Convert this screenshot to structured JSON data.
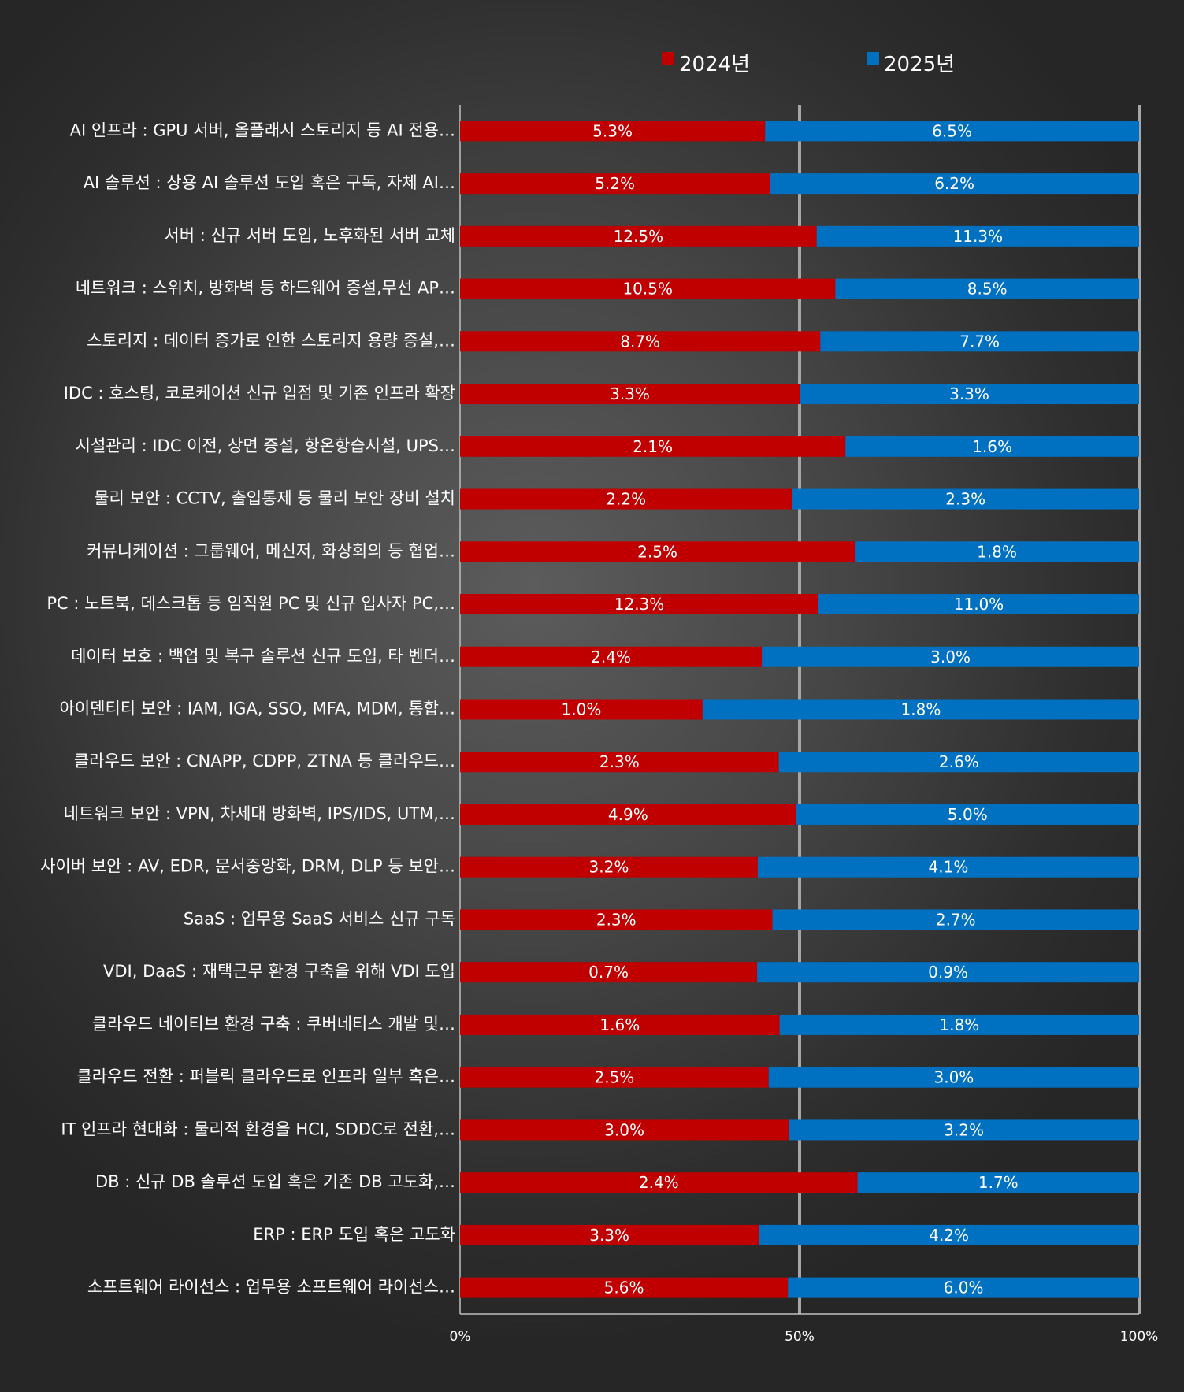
{
  "chart_data": {
    "type": "bar",
    "stacked": true,
    "percent_stacked": true,
    "orientation": "horizontal",
    "categories": [
      "AI 인프라 : GPU 서버, 올플래시 스토리지 등 AI 전용…",
      "AI 솔루션 : 상용 AI 솔루션 도입 혹은 구독, 자체 AI…",
      "서버 : 신규 서버 도입, 노후화된 서버 교체",
      "네트워크 : 스위치, 방화벽 등 하드웨어 증설,무선 AP…",
      "스토리지 : 데이터 증가로 인한 스토리지 용량 증설,…",
      "IDC : 호스팅, 코로케이션 신규 입점 및 기존 인프라 확장",
      "시설관리 : IDC 이전, 상면 증설, 항온항습시설, UPS…",
      "물리 보안 : CCTV, 출입통제 등 물리 보안 장비 설치",
      "커뮤니케이션 : 그룹웨어, 메신저, 화상회의 등 협업…",
      "PC : 노트북, 데스크톱 등 임직원 PC 및 신규 입사자 PC,…",
      "데이터 보호 : 백업 및 복구 솔루션 신규 도입, 타 벤더…",
      "아이덴티티 보안 : IAM, IGA, SSO, MFA, MDM, 통합…",
      "클라우드 보안 : CNAPP, CDPP, ZTNA 등 클라우드…",
      "네트워크 보안 : VPN, 차세대 방화벽, IPS/IDS, UTM,…",
      "사이버 보안 : AV, EDR, 문서중앙화, DRM, DLP 등 보안…",
      "SaaS : 업무용 SaaS 서비스 신규 구독",
      "VDI, DaaS : 재택근무 환경 구축을 위해 VDI 도입",
      "클라우드 네이티브 환경 구축 : 쿠버네티스 개발 및…",
      "클라우드 전환 : 퍼블릭 클라우드로 인프라 일부 혹은…",
      "IT 인프라 현대화 : 물리적 환경을 HCI, SDDC로 전환,…",
      "DB : 신규 DB 솔루션 도입 혹은 기존 DB 고도화,…",
      "ERP : ERP 도입 혹은 고도화",
      "소프트웨어 라이선스 : 업무용 소프트웨어 라이선스…"
    ],
    "series": [
      {
        "name": "2024년",
        "color": "#c00000",
        "values": [
          5.3,
          5.2,
          12.5,
          10.5,
          8.7,
          3.3,
          2.1,
          2.2,
          2.5,
          12.3,
          2.4,
          1.0,
          2.3,
          4.9,
          3.2,
          2.3,
          0.7,
          1.6,
          2.5,
          3.0,
          2.4,
          3.3,
          5.6
        ],
        "labels": [
          "5.3%",
          "5.2%",
          "12.5%",
          "10.5%",
          "8.7%",
          "3.3%",
          "2.1%",
          "2.2%",
          "2.5%",
          "12.3%",
          "2.4%",
          "1.0%",
          "2.3%",
          "4.9%",
          "3.2%",
          "2.3%",
          "0.7%",
          "1.6%",
          "2.5%",
          "3.0%",
          "2.4%",
          "3.3%",
          "5.6%"
        ]
      },
      {
        "name": "2025년",
        "color": "#0070c0",
        "values": [
          6.5,
          6.2,
          11.3,
          8.5,
          7.7,
          3.3,
          1.6,
          2.3,
          1.8,
          11.0,
          3.0,
          1.8,
          2.6,
          5.0,
          4.1,
          2.7,
          0.9,
          1.8,
          3.0,
          3.2,
          1.7,
          4.2,
          6.0
        ],
        "labels": [
          "6.5%",
          "6.2%",
          "11.3%",
          "8.5%",
          "7.7%",
          "3.3%",
          "1.6%",
          "2.3%",
          "1.8%",
          "11.0%",
          "3.0%",
          "1.8%",
          "2.6%",
          "5.0%",
          "4.1%",
          "2.7%",
          "0.9%",
          "1.8%",
          "3.0%",
          "3.2%",
          "1.7%",
          "4.2%",
          "6.0%"
        ]
      }
    ],
    "xlim": [
      0,
      100
    ],
    "xticks": [
      "0%",
      "50%",
      "100%"
    ],
    "grid": true,
    "legend": "top-right"
  }
}
